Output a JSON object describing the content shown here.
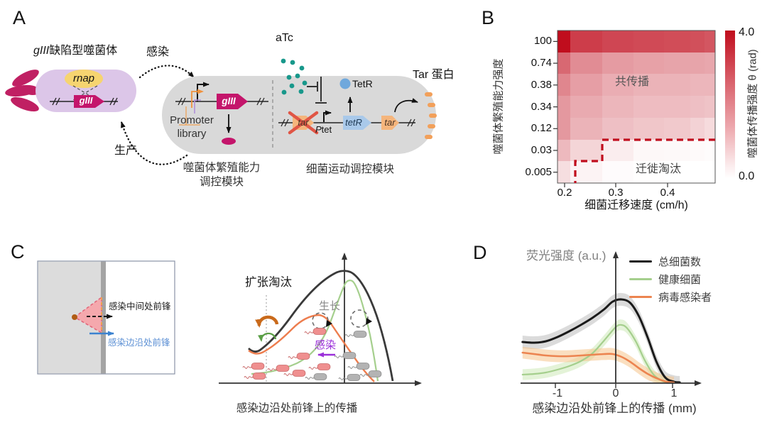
{
  "panel_a": {
    "label": "A",
    "phage_title_gene": "gIII",
    "phage_title_rest": "缺陷型噬菌体",
    "infection_label": "感染",
    "production_label": "生产",
    "rnap_gene": "rnap",
    "giii_phage_gene": "gIII",
    "giii_cell_gene": "gIII",
    "promoter_library_line1": "Promoter",
    "promoter_library_line2": "library",
    "module1_line1": "噬菌体繁殖能力",
    "module1_line2": "调控模块",
    "atc_label": "aTc",
    "tetr_protein_label": "TetR",
    "tar_crossed_gene": "tar",
    "ptet_p": "P",
    "ptet_rest": "tet",
    "tetr_gene": "tetR",
    "tar_gene": "tar",
    "tar_protein_label": "Tar 蛋白",
    "module2": "细菌运动调控模块"
  },
  "panel_b": {
    "label": "B"
  },
  "panel_c": {
    "label": "C",
    "front_mid_label": "感染中间处前锋",
    "front_edge_label": "感染边沿处前锋",
    "expansion_label": "扩张淘汰",
    "growth_label": "生长",
    "infection_label": "感染",
    "caption": "感染边沿处前锋上的传播"
  },
  "panel_d": {
    "label": "D"
  },
  "chart_data": [
    {
      "type": "heatmap",
      "panel": "B",
      "xlabel": "细菌迁移速度 (cm/h)",
      "ylabel": "噬菌体繁殖能力强度",
      "x_ticks": [
        "0.2",
        "0.3",
        "0.4"
      ],
      "y_ticks": [
        "100",
        "0.74",
        "0.38",
        "0.34",
        "0.12",
        "0.03",
        "0.005"
      ],
      "colorbar_label": "噬菌体传播强度 θ (rad)",
      "colorbar_max": "4.0",
      "colorbar_min": "0.0",
      "colorbar_range": [
        0,
        4
      ],
      "regions": [
        {
          "label": "共传播"
        },
        {
          "label": "迁徙淘汰"
        }
      ],
      "values": [
        [
          4.0,
          3.2,
          3.05,
          3.0,
          2.95,
          2.9,
          2.8
        ],
        [
          2.5,
          1.9,
          1.65,
          1.55,
          1.5,
          1.5,
          1.45
        ],
        [
          2.0,
          1.6,
          1.35,
          1.25,
          1.25,
          1.2,
          1.2
        ],
        [
          1.7,
          1.4,
          1.2,
          1.1,
          1.1,
          1.05,
          1.0
        ],
        [
          1.7,
          1.25,
          1.05,
          0.95,
          0.9,
          0.75,
          0.6
        ],
        [
          1.15,
          0.7,
          0.3,
          0.12,
          0.1,
          0.08,
          0.05
        ],
        [
          0.55,
          0.2,
          0.06,
          0.02,
          0.0,
          0.0,
          0.0
        ]
      ]
    },
    {
      "type": "line",
      "panel": "D",
      "xlabel": "感染边沿处前锋上的传播 (mm)",
      "ylabel": "荧光强度 (a.u.)",
      "x_ticks": [
        -1,
        0,
        1
      ],
      "xlim": [
        -1.6,
        1.3
      ],
      "series": [
        {
          "name": "总细菌数",
          "color": "#1a1a1a",
          "band_color": "#bdbdbd",
          "lw": 3,
          "band": 0.045,
          "x": [
            -1.6,
            -1.4,
            -1.2,
            -1,
            -0.8,
            -0.6,
            -0.4,
            -0.2,
            -0.05,
            0.1,
            0.25,
            0.4,
            0.55,
            0.7,
            0.85,
            1,
            1.1
          ],
          "y": [
            0.29,
            0.285,
            0.295,
            0.325,
            0.365,
            0.41,
            0.46,
            0.52,
            0.575,
            0.59,
            0.565,
            0.47,
            0.32,
            0.15,
            0.04,
            0.01,
            0.005
          ]
        },
        {
          "name": "健康细菌",
          "color": "#a5cf8d",
          "band_color": "#cdeab8",
          "lw": 2.2,
          "band": 0.038,
          "x": [
            -1.6,
            -1.4,
            -1.2,
            -1,
            -0.8,
            -0.6,
            -0.4,
            -0.2,
            0,
            0.1,
            0.2,
            0.35,
            0.5,
            0.65,
            0.8,
            0.9
          ],
          "y": [
            0.06,
            0.065,
            0.075,
            0.095,
            0.12,
            0.155,
            0.21,
            0.3,
            0.395,
            0.41,
            0.385,
            0.29,
            0.16,
            0.06,
            0.015,
            0.005
          ]
        },
        {
          "name": "病毒感染者",
          "color": "#ec8450",
          "band_color": "#f6c48c",
          "lw": 2.6,
          "band": 0.042,
          "x": [
            -1.6,
            -1.4,
            -1.2,
            -1,
            -0.8,
            -0.6,
            -0.4,
            -0.2,
            -0.05,
            0.1,
            0.25,
            0.4,
            0.55,
            0.7,
            0.85,
            1
          ],
          "y": [
            0.215,
            0.205,
            0.195,
            0.19,
            0.19,
            0.195,
            0.2,
            0.205,
            0.205,
            0.185,
            0.15,
            0.105,
            0.065,
            0.035,
            0.012,
            0.004
          ]
        }
      ]
    }
  ]
}
